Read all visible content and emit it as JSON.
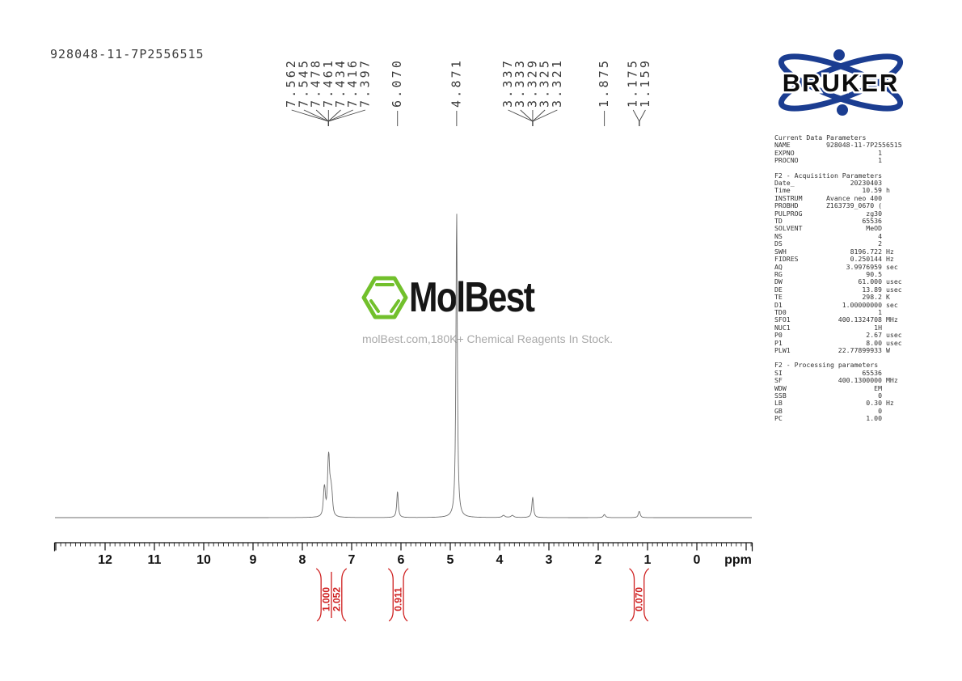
{
  "page": {
    "sample_id": "928048-11-7P2556515"
  },
  "logo": {
    "brand": "BRUKER",
    "color": "#1b3d91"
  },
  "watermark": {
    "brand": "MolBest",
    "tagline": "molBest.com,180K+ Chemical Reagents In Stock.",
    "hex_color": "#72c02c"
  },
  "params": {
    "sections": [
      {
        "title": "Current Data Parameters",
        "rows": [
          {
            "l": "NAME",
            "v": "928048-11-7P2556515",
            "u": ""
          },
          {
            "l": "EXPNO",
            "v": "1",
            "u": ""
          },
          {
            "l": "PROCNO",
            "v": "1",
            "u": ""
          }
        ]
      },
      {
        "title": "F2 - Acquisition Parameters",
        "rows": [
          {
            "l": "Date_",
            "v": "20230403",
            "u": ""
          },
          {
            "l": "Time",
            "v": "10.59",
            "u": "h"
          },
          {
            "l": "INSTRUM",
            "v": "Avance neo 400",
            "u": ""
          },
          {
            "l": "PROBHD",
            "v": "Z163739_0670 (",
            "u": ""
          },
          {
            "l": "PULPROG",
            "v": "zg30",
            "u": ""
          },
          {
            "l": "TD",
            "v": "65536",
            "u": ""
          },
          {
            "l": "SOLVENT",
            "v": "MeOD",
            "u": ""
          },
          {
            "l": "NS",
            "v": "4",
            "u": ""
          },
          {
            "l": "DS",
            "v": "2",
            "u": ""
          },
          {
            "l": "SWH",
            "v": "8196.722",
            "u": "Hz"
          },
          {
            "l": "FIDRES",
            "v": "0.250144",
            "u": "Hz"
          },
          {
            "l": "AQ",
            "v": "3.9976959",
            "u": "sec"
          },
          {
            "l": "RG",
            "v": "90.5",
            "u": ""
          },
          {
            "l": "DW",
            "v": "61.000",
            "u": "usec"
          },
          {
            "l": "DE",
            "v": "13.89",
            "u": "usec"
          },
          {
            "l": "TE",
            "v": "298.2",
            "u": "K"
          },
          {
            "l": "D1",
            "v": "1.00000000",
            "u": "sec"
          },
          {
            "l": "TD0",
            "v": "1",
            "u": ""
          },
          {
            "l": "SFO1",
            "v": "400.1324708",
            "u": "MHz"
          },
          {
            "l": "NUC1",
            "v": "1H",
            "u": ""
          },
          {
            "l": "P0",
            "v": "2.67",
            "u": "usec"
          },
          {
            "l": "P1",
            "v": "8.00",
            "u": "usec"
          },
          {
            "l": "PLW1",
            "v": "22.77899933",
            "u": "W"
          }
        ]
      },
      {
        "title": "F2 - Processing parameters",
        "rows": [
          {
            "l": "SI",
            "v": "65536",
            "u": ""
          },
          {
            "l": "SF",
            "v": "400.1300000",
            "u": "MHz"
          },
          {
            "l": "WDW",
            "v": "EM",
            "u": ""
          },
          {
            "l": "SSB",
            "v": "0",
            "u": ""
          },
          {
            "l": "LB",
            "v": "0.30",
            "u": "Hz"
          },
          {
            "l": "GB",
            "v": "0",
            "u": ""
          },
          {
            "l": "PC",
            "v": "1.00",
            "u": ""
          }
        ]
      }
    ]
  },
  "chart_data": {
    "type": "line",
    "title": "1H NMR spectrum 928048-11-7P2556515",
    "xlabel": "ppm",
    "x_range": [
      13.0,
      -1.1
    ],
    "x_ticks": [
      12,
      11,
      10,
      9,
      8,
      7,
      6,
      5,
      4,
      3,
      2,
      1,
      0
    ],
    "grid": false,
    "trace_color": "#6e6e6e",
    "accent_red": "#cf2020",
    "peak_label_groups": [
      {
        "labels": [
          "7.562",
          "7.545",
          "7.478",
          "7.461",
          "7.434",
          "7.416",
          "7.397"
        ]
      },
      {
        "labels": [
          "6.070"
        ]
      },
      {
        "labels": [
          "4.871"
        ]
      },
      {
        "labels": [
          "3.337",
          "3.333",
          "3.329",
          "3.325",
          "3.321"
        ]
      },
      {
        "labels": [
          "1.875"
        ]
      },
      {
        "labels": [
          "1.175",
          "1.159"
        ]
      }
    ],
    "peaks": [
      {
        "ppm": 7.562,
        "h": 0.055
      },
      {
        "ppm": 7.545,
        "h": 0.06
      },
      {
        "ppm": 7.478,
        "h": 0.1
      },
      {
        "ppm": 7.461,
        "h": 0.13
      },
      {
        "ppm": 7.434,
        "h": 0.045
      },
      {
        "ppm": 7.416,
        "h": 0.048
      },
      {
        "ppm": 7.397,
        "h": 0.04
      },
      {
        "ppm": 6.07,
        "h": 0.086
      },
      {
        "ppm": 4.871,
        "h": 1.0,
        "w": 1.0
      },
      {
        "ppm": 3.92,
        "h": 0.007,
        "w": 2
      },
      {
        "ppm": 3.74,
        "h": 0.007,
        "w": 2
      },
      {
        "ppm": 3.337,
        "h": 0.008
      },
      {
        "ppm": 3.333,
        "h": 0.012
      },
      {
        "ppm": 3.329,
        "h": 0.03
      },
      {
        "ppm": 3.325,
        "h": 0.012
      },
      {
        "ppm": 3.321,
        "h": 0.008
      },
      {
        "ppm": 1.875,
        "h": 0.01,
        "w": 1.5
      },
      {
        "ppm": 1.175,
        "h": 0.013
      },
      {
        "ppm": 1.159,
        "h": 0.011
      }
    ],
    "integrals": [
      {
        "regions": [
          {
            "value": "1.000",
            "from": 7.62,
            "to": 7.41
          },
          {
            "value": "2.052",
            "from": 7.41,
            "to": 7.2
          }
        ]
      },
      {
        "regions": [
          {
            "value": "0.911",
            "from": 6.16,
            "to": 5.95
          }
        ]
      },
      {
        "regions": [
          {
            "value": "0.070",
            "from": 1.27,
            "to": 1.07
          }
        ]
      }
    ]
  }
}
